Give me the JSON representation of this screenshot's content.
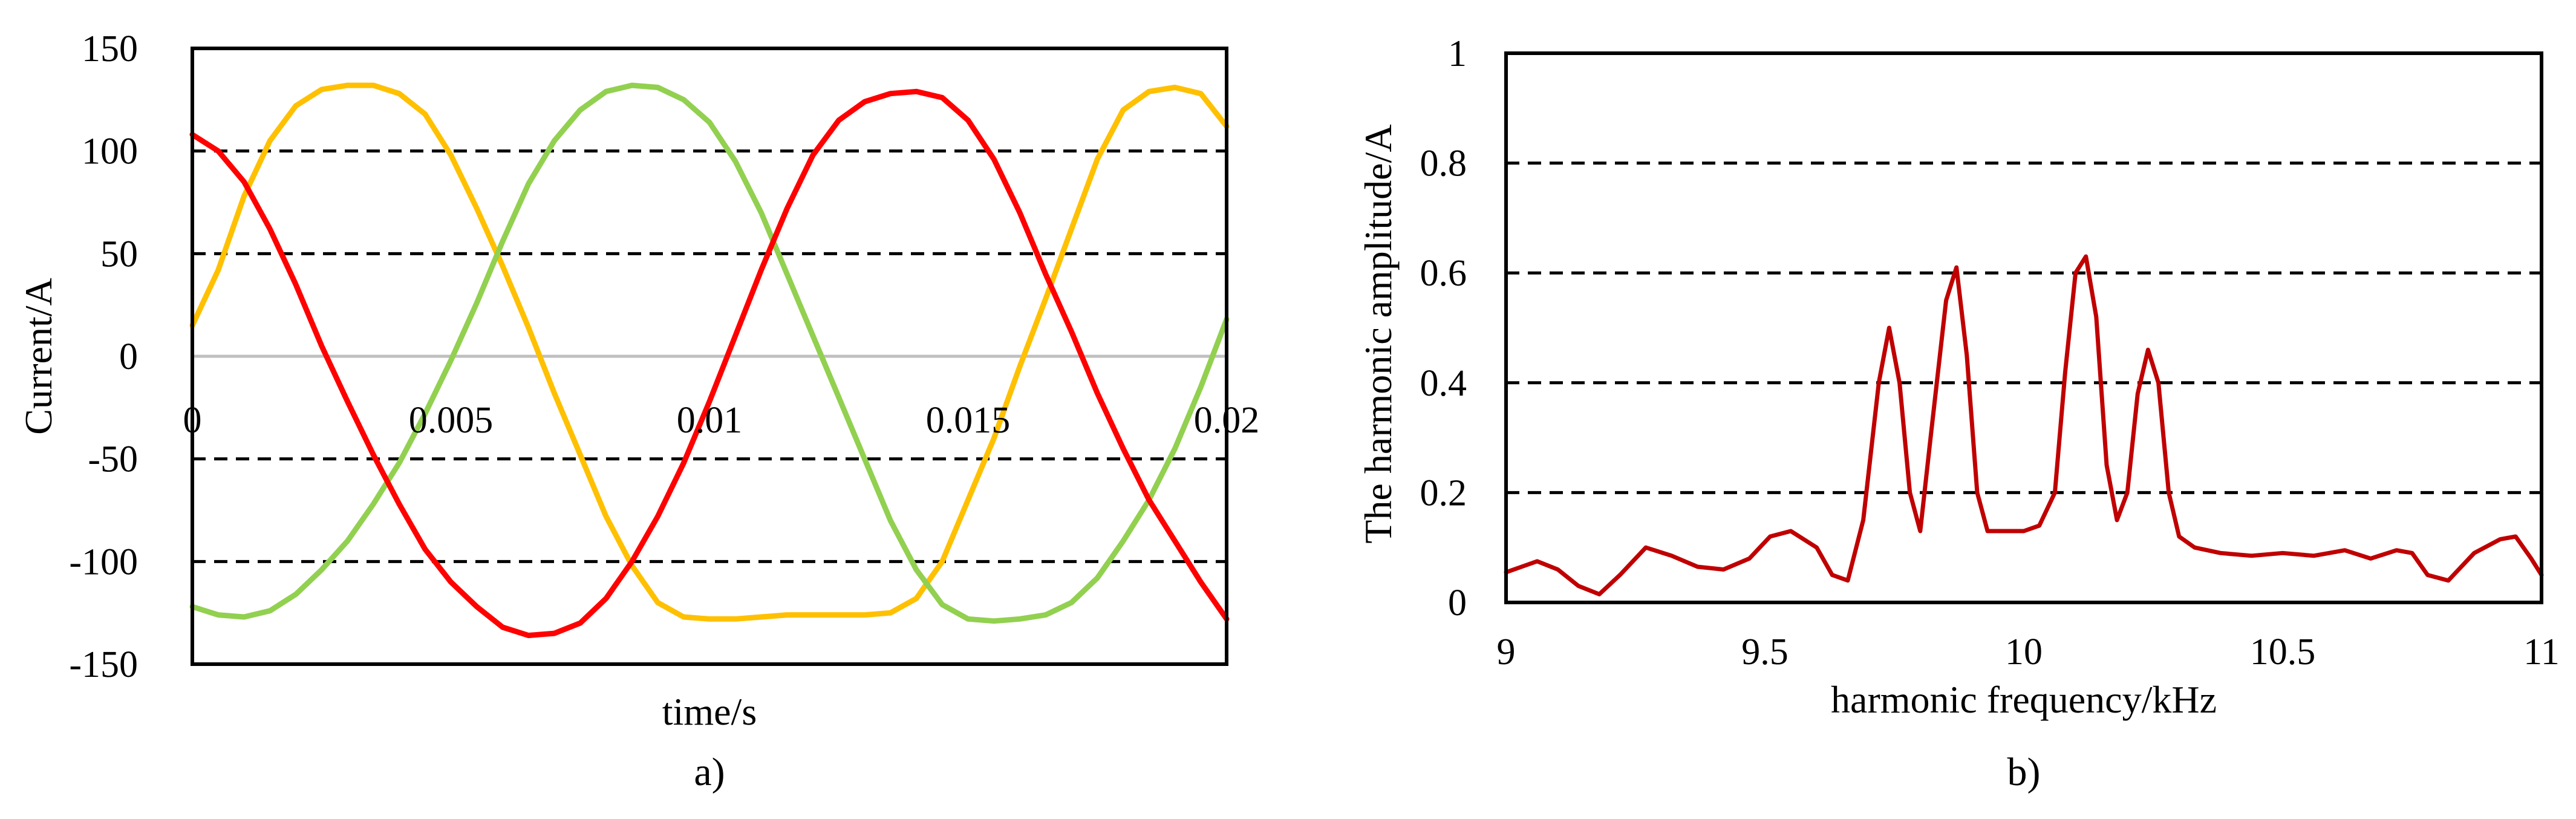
{
  "chart_data": [
    {
      "type": "line",
      "panel_label": "a)",
      "xlabel": "time/s",
      "ylabel": "Current/A",
      "xlim": [
        0,
        0.02
      ],
      "ylim": [
        -150,
        150
      ],
      "x_ticks": [
        0,
        0.005,
        0.01,
        0.015,
        0.02
      ],
      "x_tick_labels": [
        "0",
        "0.005",
        "0.01",
        "0.015",
        "0.02"
      ],
      "y_ticks": [
        -150,
        -100,
        -50,
        0,
        50,
        100,
        150
      ],
      "y_tick_labels": [
        "-150",
        "-100",
        "-50",
        "0",
        "50",
        "100",
        "150"
      ],
      "gridlines": "dashed horizontal at ±50 and ±100, gray zero line",
      "series": [
        {
          "color": "#ffc000",
          "x": [
            0,
            0.0005,
            0.001,
            0.0015,
            0.002,
            0.0025,
            0.003,
            0.0035,
            0.004,
            0.0045,
            0.005,
            0.0055,
            0.006,
            0.0065,
            0.007,
            0.0075,
            0.008,
            0.0085,
            0.009,
            0.0095,
            0.01,
            0.0105,
            0.011,
            0.0115,
            0.012,
            0.0125,
            0.013,
            0.0135,
            0.014,
            0.0145,
            0.015,
            0.0155,
            0.016,
            0.0165,
            0.017,
            0.0175,
            0.018,
            0.0185,
            0.019,
            0.0195,
            0.02
          ],
          "values": [
            15,
            42,
            78,
            105,
            122,
            130,
            132,
            132,
            128,
            118,
            98,
            72,
            44,
            14,
            -18,
            -48,
            -78,
            -102,
            -120,
            -127,
            -128,
            -128,
            -127,
            -126,
            -126,
            -126,
            -126,
            -125,
            -118,
            -100,
            -70,
            -40,
            -5,
            28,
            62,
            96,
            120,
            129,
            131,
            128,
            112
          ]
        },
        {
          "color": "#92d050",
          "x": [
            0,
            0.0005,
            0.001,
            0.0015,
            0.002,
            0.0025,
            0.003,
            0.0035,
            0.004,
            0.0045,
            0.005,
            0.0055,
            0.006,
            0.0065,
            0.007,
            0.0075,
            0.008,
            0.0085,
            0.009,
            0.0095,
            0.01,
            0.0105,
            0.011,
            0.0115,
            0.012,
            0.0125,
            0.013,
            0.0135,
            0.014,
            0.0145,
            0.015,
            0.0155,
            0.016,
            0.0165,
            0.017,
            0.0175,
            0.018,
            0.0185,
            0.019,
            0.0195,
            0.02
          ],
          "values": [
            -122,
            -126,
            -127,
            -124,
            -116,
            -104,
            -90,
            -72,
            -52,
            -28,
            -2,
            26,
            56,
            84,
            105,
            120,
            129,
            132,
            131,
            125,
            114,
            95,
            70,
            40,
            10,
            -20,
            -50,
            -80,
            -104,
            -121,
            -128,
            -129,
            -128,
            -126,
            -120,
            -108,
            -90,
            -70,
            -45,
            -15,
            18
          ]
        },
        {
          "color": "#ff0000",
          "x": [
            0,
            0.0005,
            0.001,
            0.0015,
            0.002,
            0.0025,
            0.003,
            0.0035,
            0.004,
            0.0045,
            0.005,
            0.0055,
            0.006,
            0.0065,
            0.007,
            0.0075,
            0.008,
            0.0085,
            0.009,
            0.0095,
            0.01,
            0.0105,
            0.011,
            0.0115,
            0.012,
            0.0125,
            0.013,
            0.0135,
            0.014,
            0.0145,
            0.015,
            0.0155,
            0.016,
            0.0165,
            0.017,
            0.0175,
            0.018,
            0.0185,
            0.019,
            0.0195,
            0.02
          ],
          "values": [
            108,
            100,
            85,
            62,
            35,
            5,
            -22,
            -48,
            -72,
            -94,
            -110,
            -122,
            -132,
            -136,
            -135,
            -130,
            -118,
            -100,
            -78,
            -52,
            -22,
            10,
            42,
            72,
            98,
            115,
            124,
            128,
            129,
            126,
            115,
            96,
            70,
            40,
            12,
            -18,
            -45,
            -70,
            -90,
            -110,
            -128
          ]
        }
      ]
    },
    {
      "type": "line",
      "panel_label": "b)",
      "xlabel": "harmonic frequency/kHz",
      "ylabel": "The harmonic amplitude/A",
      "xlim": [
        9,
        11
      ],
      "ylim": [
        0,
        1
      ],
      "x_ticks": [
        9,
        9.5,
        10,
        10.5,
        11
      ],
      "x_tick_labels": [
        "9",
        "9.5",
        "10",
        "10.5",
        "11"
      ],
      "y_ticks": [
        0,
        0.2,
        0.4,
        0.6,
        0.8,
        1
      ],
      "y_tick_labels": [
        "0",
        "0.2",
        "0.4",
        "0.6",
        "0.8",
        "1"
      ],
      "gridlines": "dashed horizontal at 0.2, 0.4, 0.6, 0.8",
      "series": [
        {
          "color": "#c00000",
          "x": [
            9.0,
            9.03,
            9.06,
            9.1,
            9.14,
            9.18,
            9.22,
            9.27,
            9.32,
            9.37,
            9.42,
            9.47,
            9.51,
            9.55,
            9.6,
            9.63,
            9.66,
            9.69,
            9.72,
            9.74,
            9.76,
            9.78,
            9.8,
            9.82,
            9.85,
            9.87,
            9.89,
            9.91,
            9.93,
            9.96,
            10.0,
            10.03,
            10.06,
            10.08,
            10.1,
            10.12,
            10.14,
            10.16,
            10.18,
            10.2,
            10.22,
            10.24,
            10.26,
            10.28,
            10.3,
            10.33,
            10.38,
            10.44,
            10.5,
            10.56,
            10.62,
            10.67,
            10.72,
            10.75,
            10.78,
            10.82,
            10.87,
            10.92,
            10.95,
            10.98,
            11.0
          ],
          "values": [
            0.055,
            0.065,
            0.075,
            0.06,
            0.03,
            0.015,
            0.05,
            0.1,
            0.085,
            0.065,
            0.06,
            0.08,
            0.12,
            0.13,
            0.1,
            0.05,
            0.04,
            0.15,
            0.4,
            0.5,
            0.4,
            0.2,
            0.13,
            0.3,
            0.55,
            0.61,
            0.45,
            0.2,
            0.13,
            0.13,
            0.13,
            0.14,
            0.2,
            0.42,
            0.6,
            0.63,
            0.52,
            0.25,
            0.15,
            0.2,
            0.38,
            0.46,
            0.4,
            0.2,
            0.12,
            0.1,
            0.09,
            0.085,
            0.09,
            0.085,
            0.095,
            0.08,
            0.095,
            0.09,
            0.05,
            0.04,
            0.09,
            0.115,
            0.12,
            0.08,
            0.05
          ]
        }
      ]
    }
  ]
}
